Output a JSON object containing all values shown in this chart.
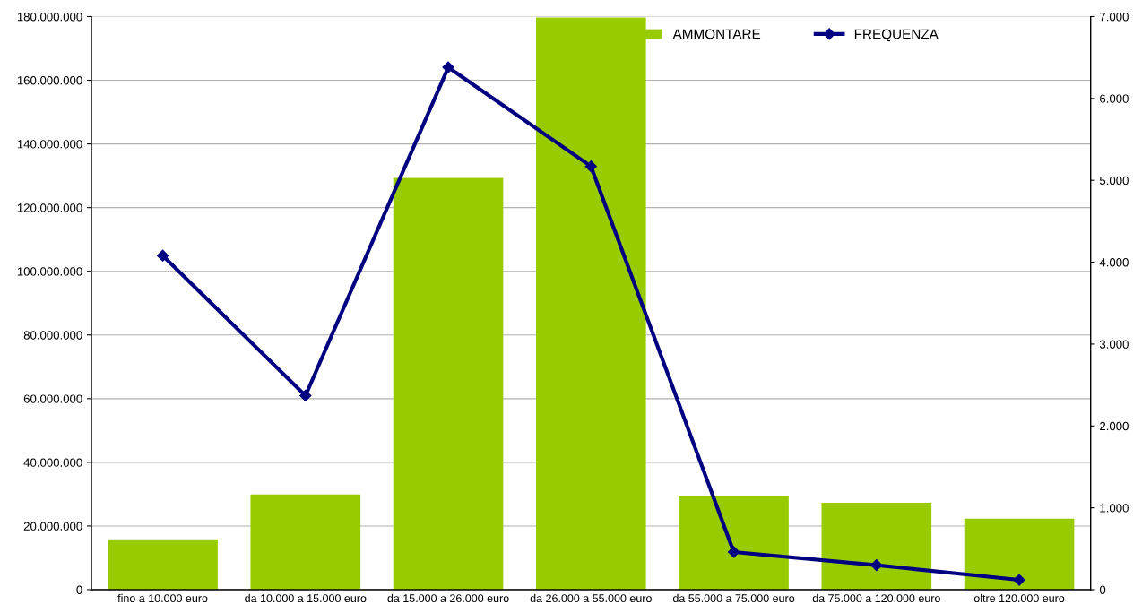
{
  "chart_data": {
    "type": "bar",
    "categories": [
      "fino a 10.000 euro",
      "da 10.000 a 15.000 euro",
      "da 15.000 a 26.000 euro",
      "da 26.000 a 55.000 euro",
      "da 55.000 a 75.000 euro",
      "da 75.000 a 120.000 euro",
      "oltre 120.000 euro"
    ],
    "series": [
      {
        "name": "AMMONTARE",
        "color": "#99cc00",
        "values": [
          15800000,
          29900000,
          129300000,
          179700000,
          29300000,
          27300000,
          22300000
        ]
      },
      {
        "name": "FREQUENZA",
        "type": "line",
        "axis": "y2",
        "color": "#000080",
        "marker": "diamond",
        "values": [
          4080,
          2370,
          6380,
          5170,
          460,
          300,
          120
        ]
      }
    ],
    "ylim": [
      0,
      180000000
    ],
    "yticks": [
      {
        "value": 0,
        "label": "0"
      },
      {
        "value": 20000000,
        "label": "20.000.000"
      },
      {
        "value": 40000000,
        "label": "40.000.000"
      },
      {
        "value": 60000000,
        "label": "60.000.000"
      },
      {
        "value": 80000000,
        "label": "80.000.000"
      },
      {
        "value": 100000000,
        "label": "100.000.000"
      },
      {
        "value": 120000000,
        "label": "120.000.000"
      },
      {
        "value": 140000000,
        "label": "140.000.000"
      },
      {
        "value": 160000000,
        "label": "160.000.000"
      },
      {
        "value": 180000000,
        "label": "180.000.000"
      }
    ],
    "y2lim": [
      0,
      7000
    ],
    "y2ticks": [
      {
        "value": 0,
        "label": "0"
      },
      {
        "value": 1000,
        "label": "1.000"
      },
      {
        "value": 2000,
        "label": "2.000"
      },
      {
        "value": 3000,
        "label": "3.000"
      },
      {
        "value": 4000,
        "label": "4.000"
      },
      {
        "value": 5000,
        "label": "5.000"
      },
      {
        "value": 6000,
        "label": "6.000"
      },
      {
        "value": 7000,
        "label": "7.000"
      }
    ],
    "grid": "y",
    "legend": "top right"
  }
}
